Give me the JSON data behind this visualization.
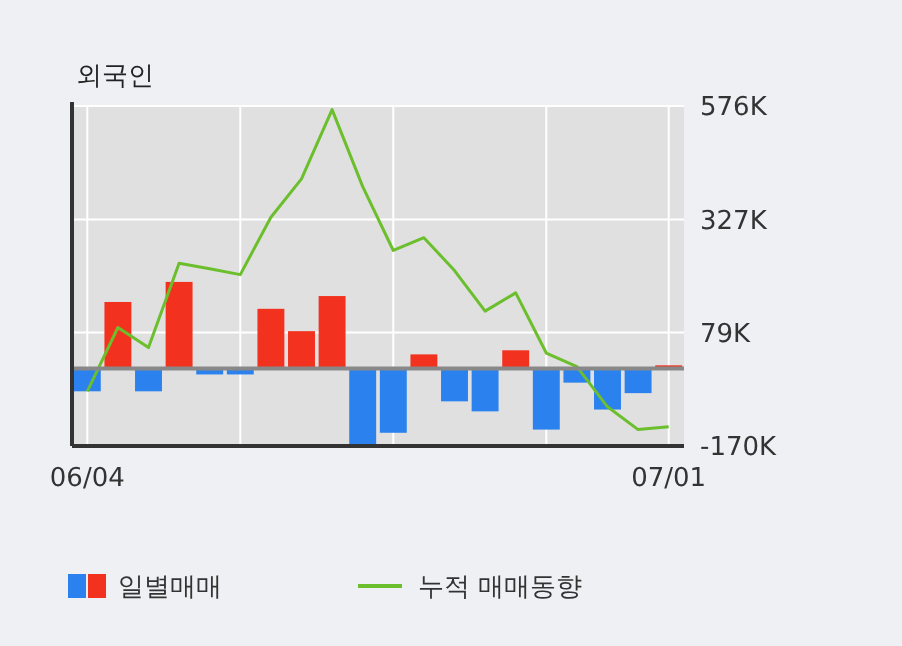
{
  "chart_data": {
    "type": "bar",
    "title": "외국인",
    "categories": [
      "06/04",
      null,
      null,
      null,
      null,
      null,
      null,
      null,
      null,
      null,
      null,
      null,
      null,
      null,
      null,
      null,
      null,
      null,
      null,
      "07/01"
    ],
    "series": [
      {
        "name": "일별매매",
        "colors": [
          "#2b82ef",
          "#f2321e",
          "#2b82ef",
          "#f2321e",
          "#2b82ef",
          "#2b82ef",
          "#f2321e",
          "#f2321e",
          "#f2321e",
          "#2b82ef",
          "#2b82ef",
          "#f2321e",
          "#2b82ef",
          "#2b82ef",
          "#f2321e",
          "#2b82ef",
          "#2b82ef",
          "#2b82ef",
          "#2b82ef",
          "#f2321e"
        ],
        "values": [
          -50,
          146,
          -50,
          190,
          -13,
          -13,
          131,
          82,
          159,
          -168,
          -141,
          31,
          -72,
          -94,
          40,
          -134,
          -31,
          -90,
          -54,
          7
        ]
      },
      {
        "name": "누적 매매동향",
        "type": "line",
        "color": "#6cbf2c",
        "values": [
          -50,
          90,
          46,
          231,
          219,
          206,
          332,
          416,
          568,
          399,
          259,
          287,
          215,
          126,
          166,
          34,
          4,
          -84,
          -134,
          -128
        ]
      }
    ],
    "ylim": [
      -170,
      576
    ],
    "yticks": [
      {
        "value": -170,
        "label": "-170K"
      },
      {
        "value": 79,
        "label": "79K"
      },
      {
        "value": 327,
        "label": "327K"
      },
      {
        "value": 576,
        "label": "576K"
      }
    ],
    "grid": true,
    "legend": "bottom"
  }
}
